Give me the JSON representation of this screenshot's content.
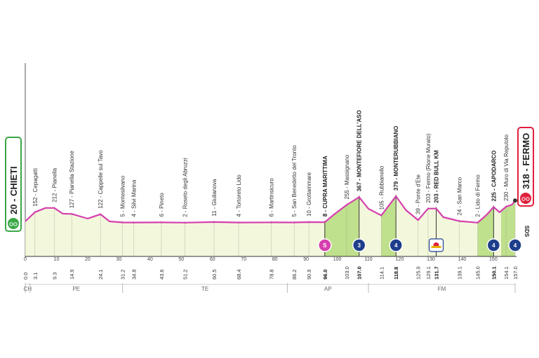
{
  "chart_data": {
    "type": "area",
    "x_unit": "km",
    "x_range": [
      0,
      157
    ],
    "start": {
      "label": "20 - CHIETI",
      "km": 0,
      "alt": 20
    },
    "finish": {
      "label": "318 - FERMO",
      "km": 157,
      "alt": 318
    },
    "profile": [
      [
        0,
        20
      ],
      [
        3.1,
        152
      ],
      [
        6.5,
        212
      ],
      [
        9.3,
        212
      ],
      [
        12,
        130
      ],
      [
        14.9,
        127
      ],
      [
        20,
        60
      ],
      [
        24.1,
        122
      ],
      [
        27,
        20
      ],
      [
        31.2,
        5
      ],
      [
        34.8,
        4
      ],
      [
        43.6,
        6
      ],
      [
        51.2,
        2
      ],
      [
        60.5,
        11
      ],
      [
        68.4,
        4
      ],
      [
        78.8,
        6
      ],
      [
        86.2,
        5
      ],
      [
        90.9,
        10
      ],
      [
        96.0,
        8
      ],
      [
        99,
        120
      ],
      [
        103.0,
        255
      ],
      [
        107.0,
        367
      ],
      [
        110,
        200
      ],
      [
        114.1,
        105
      ],
      [
        118.8,
        379
      ],
      [
        122,
        180
      ],
      [
        125.9,
        39
      ],
      [
        129.1,
        203
      ],
      [
        131.7,
        203
      ],
      [
        134,
        80
      ],
      [
        139.1,
        24
      ],
      [
        145.0,
        2
      ],
      [
        148,
        120
      ],
      [
        150.1,
        225
      ],
      [
        152,
        150
      ],
      [
        154.1,
        230
      ],
      [
        156,
        260
      ],
      [
        157.0,
        318
      ]
    ],
    "waypoints": [
      {
        "km": "0.0",
        "x": 0,
        "label": ""
      },
      {
        "km": "3.1",
        "x": 3.1,
        "label": "152 - Cepagatti"
      },
      {
        "km": "9.3",
        "x": 9.3,
        "label": "212 - Pianella"
      },
      {
        "km": "14.9",
        "x": 14.9,
        "label": "127 - Pianella Stazione"
      },
      {
        "km": "24.1",
        "x": 24.1,
        "label": "122 - Cappelle sul Tavo"
      },
      {
        "km": "31.2",
        "x": 31.2,
        "label": "5 - Montesilvano"
      },
      {
        "km": "34.8",
        "x": 34.8,
        "label": "4 - Silvi Marina"
      },
      {
        "km": "43.6",
        "x": 43.6,
        "label": "6 - Pineto"
      },
      {
        "km": "51.2",
        "x": 51.2,
        "label": "2 - Roseto degli Abruzzi"
      },
      {
        "km": "60.5",
        "x": 60.5,
        "label": "11 - Giulianova"
      },
      {
        "km": "68.4",
        "x": 68.4,
        "label": "4 - Tortoreto Lido"
      },
      {
        "km": "78.8",
        "x": 78.8,
        "label": "6 - Martinsicuro"
      },
      {
        "km": "86.2",
        "x": 86.2,
        "label": "5 - San Benedetto del Tronto"
      },
      {
        "km": "90.9",
        "x": 90.9,
        "label": "10 - Grottammare"
      },
      {
        "km": "96.0",
        "x": 96.0,
        "label": "8 - CUPRA MARITTIMA",
        "bold": true
      },
      {
        "km": "103.0",
        "x": 103.0,
        "label": "255 - Massignano"
      },
      {
        "km": "107.0",
        "x": 107.0,
        "label": "367 - MONTEFIORE DELL'ASO",
        "bold": true
      },
      {
        "km": "114.1",
        "x": 114.1,
        "label": "105 - Rubbianello"
      },
      {
        "km": "118.8",
        "x": 118.8,
        "label": "379 - MONTERUBBIANO",
        "bold": true
      },
      {
        "km": "125.9",
        "x": 125.9,
        "label": "39 - Ponte d'Ete"
      },
      {
        "km": "129.1",
        "x": 129.1,
        "label": "203 - Fermo (Rione Murato)"
      },
      {
        "km": "131.7",
        "x": 131.7,
        "label": "203 - RED BULL KM",
        "bold": true
      },
      {
        "km": "139.1",
        "x": 139.1,
        "label": "24 - San Marco"
      },
      {
        "km": "145.0",
        "x": 145.0,
        "label": "2 - Lido di Fermo"
      },
      {
        "km": "150.1",
        "x": 150.1,
        "label": "225 - CAPODARCO",
        "bold": true
      },
      {
        "km": "154.1",
        "x": 154.1,
        "label": "230 - Muro di Via Reputolo"
      },
      {
        "km": "157.0",
        "x": 157.0,
        "label": ""
      }
    ],
    "axis_ticks": [
      "0",
      "10",
      "20",
      "30",
      "40",
      "50",
      "60",
      "70",
      "80",
      "90",
      "100",
      "110",
      "120",
      "130",
      "140",
      "150"
    ],
    "provinces": [
      {
        "code": "CH",
        "from": 0,
        "to": 1.5
      },
      {
        "code": "PE",
        "from": 1.5,
        "to": 31.2
      },
      {
        "code": "TE",
        "from": 31.2,
        "to": 84
      },
      {
        "code": "AP",
        "from": 84,
        "to": 110
      },
      {
        "code": "FM",
        "from": 110,
        "to": 157
      }
    ],
    "green_segments": [
      [
        96.0,
        107.0
      ],
      [
        114.1,
        118.8
      ],
      [
        145.0,
        150.1
      ],
      [
        152.5,
        157.0
      ]
    ],
    "icons": [
      {
        "km": 96.0,
        "type": "sprint",
        "text": "S",
        "color": "#d63fae"
      },
      {
        "km": 107.0,
        "type": "climb",
        "text": "3",
        "color": "#1e3e8c"
      },
      {
        "km": 118.8,
        "type": "climb",
        "text": "4",
        "color": "#1e3e8c"
      },
      {
        "km": 131.7,
        "type": "redbull",
        "text": "",
        "color": "#ffffff"
      },
      {
        "km": 150.1,
        "type": "climb",
        "text": "4",
        "color": "#1e3e8c"
      },
      {
        "km": 157.0,
        "type": "climb",
        "text": "4",
        "color": "#1e3e8c"
      }
    ],
    "side_text": "SDS",
    "colors": {
      "profile_line": "#d63fae",
      "profile_fill": "#f3f8dc",
      "climb_fill": "#bfe08c",
      "start_accent": "#39a845",
      "finish_accent": "#e0203c"
    }
  }
}
